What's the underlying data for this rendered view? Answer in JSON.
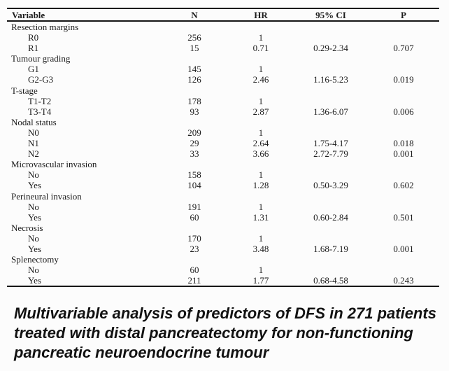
{
  "table": {
    "columns": [
      "Variable",
      "N",
      "HR",
      "95% CI",
      "P"
    ],
    "groups": [
      {
        "label": "Resection margins",
        "rows": [
          {
            "variable": "R0",
            "n": "256",
            "hr": "1",
            "ci": "",
            "p": ""
          },
          {
            "variable": "R1",
            "n": "15",
            "hr": "0.71",
            "ci": "0.29-2.34",
            "p": "0.707"
          }
        ]
      },
      {
        "label": "Tumour grading",
        "rows": [
          {
            "variable": "G1",
            "n": "145",
            "hr": "1",
            "ci": "",
            "p": ""
          },
          {
            "variable": "G2-G3",
            "n": "126",
            "hr": "2.46",
            "ci": "1.16-5.23",
            "p": "0.019"
          }
        ]
      },
      {
        "label": "T-stage",
        "rows": [
          {
            "variable": "T1-T2",
            "n": "178",
            "hr": "1",
            "ci": "",
            "p": ""
          },
          {
            "variable": "T3-T4",
            "n": "93",
            "hr": "2.87",
            "ci": "1.36-6.07",
            "p": "0.006"
          }
        ]
      },
      {
        "label": "Nodal status",
        "rows": [
          {
            "variable": "N0",
            "n": "209",
            "hr": "1",
            "ci": "",
            "p": ""
          },
          {
            "variable": "N1",
            "n": "29",
            "hr": "2.64",
            "ci": "1.75-4.17",
            "p": "0.018"
          },
          {
            "variable": "N2",
            "n": "33",
            "hr": "3.66",
            "ci": "2.72-7.79",
            "p": "0.001"
          }
        ]
      },
      {
        "label": "Microvascular invasion",
        "rows": [
          {
            "variable": "No",
            "n": "158",
            "hr": "1",
            "ci": "",
            "p": ""
          },
          {
            "variable": "Yes",
            "n": "104",
            "hr": "1.28",
            "ci": "0.50-3.29",
            "p": "0.602"
          }
        ]
      },
      {
        "label": "Perineural invasion",
        "rows": [
          {
            "variable": "No",
            "n": "191",
            "hr": "1",
            "ci": "",
            "p": ""
          },
          {
            "variable": "Yes",
            "n": "60",
            "hr": "1.31",
            "ci": "0.60-2.84",
            "p": "0.501"
          }
        ]
      },
      {
        "label": "Necrosis",
        "rows": [
          {
            "variable": "No",
            "n": "170",
            "hr": "1",
            "ci": "",
            "p": ""
          },
          {
            "variable": "Yes",
            "n": "23",
            "hr": "3.48",
            "ci": "1.68-7.19",
            "p": "0.001"
          }
        ]
      },
      {
        "label": "Splenectomy",
        "rows": [
          {
            "variable": "No",
            "n": "60",
            "hr": "1",
            "ci": "",
            "p": ""
          },
          {
            "variable": "Yes",
            "n": "211",
            "hr": "1.77",
            "ci": "0.68-4.58",
            "p": "0.243"
          }
        ]
      }
    ]
  },
  "caption": {
    "lines": [
      "Multivariable analysis of predictors of DFS in 271 patients",
      "treated with distal pancreatectomy for non-functioning",
      "pancreatic neuroendocrine tumour"
    ]
  },
  "colors": {
    "background": "#fcfcfc",
    "rule_line": "#161616",
    "table_text": "#1c1c1c",
    "caption_text": "#121212"
  }
}
